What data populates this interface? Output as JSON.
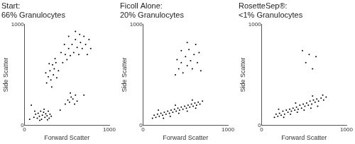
{
  "chart_data": [
    {
      "type": "scatter",
      "title": [
        "Start:",
        "66% Granulocytes"
      ],
      "x_label": "Forward Scatter",
      "y_label": "Side Scatter",
      "xlim": [
        0,
        1000
      ],
      "ylim": [
        0,
        1000
      ],
      "xticks": [
        0,
        1000
      ],
      "yticks": [
        0,
        1000
      ],
      "grid": false,
      "color": "#000000",
      "x": [
        110,
        130,
        150,
        160,
        175,
        190,
        200,
        210,
        225,
        240,
        250,
        265,
        280,
        290,
        300,
        315,
        120,
        180,
        230,
        270,
        480,
        510,
        530,
        550,
        570,
        600,
        620,
        540,
        590,
        260,
        280,
        300,
        310,
        330,
        340,
        350,
        370,
        380,
        400,
        290,
        320,
        360,
        250,
        450,
        480,
        500,
        520,
        540,
        560,
        580,
        600,
        620,
        640,
        660,
        680,
        700,
        720,
        740,
        760,
        520,
        600,
        470,
        780,
        650,
        430,
        60,
        80,
        420,
        700
      ],
      "values": [
        80,
        110,
        70,
        120,
        90,
        140,
        60,
        100,
        130,
        80,
        115,
        95,
        140,
        70,
        110,
        90,
        140,
        50,
        160,
        55,
        210,
        250,
        230,
        280,
        260,
        300,
        240,
        320,
        210,
        420,
        480,
        540,
        450,
        600,
        500,
        560,
        620,
        470,
        540,
        610,
        380,
        660,
        520,
        620,
        700,
        650,
        760,
        690,
        800,
        720,
        850,
        770,
        700,
        820,
        760,
        880,
        800,
        700,
        850,
        880,
        930,
        800,
        760,
        900,
        720,
        60,
        200,
        150,
        300
      ]
    },
    {
      "type": "scatter",
      "title": [
        "Ficoll Alone:",
        "20% Granulocytes"
      ],
      "x_label": "Forward Scatter",
      "y_label": "Side Scatter",
      "xlim": [
        0,
        1000
      ],
      "ylim": [
        0,
        1000
      ],
      "xticks": [
        0,
        1000
      ],
      "yticks": [
        0,
        1000
      ],
      "grid": false,
      "color": "#000000",
      "x": [
        110,
        130,
        150,
        170,
        190,
        210,
        230,
        250,
        270,
        290,
        310,
        330,
        350,
        370,
        390,
        410,
        430,
        450,
        470,
        490,
        510,
        530,
        550,
        570,
        590,
        610,
        630,
        650,
        670,
        700,
        240,
        320,
        420,
        520,
        620,
        180,
        380,
        580,
        380,
        420,
        450,
        470,
        500,
        520,
        540,
        560,
        580,
        600,
        620,
        640,
        660,
        450,
        520,
        400,
        680
      ],
      "values": [
        70,
        100,
        80,
        110,
        90,
        120,
        100,
        130,
        110,
        140,
        120,
        150,
        130,
        160,
        140,
        170,
        150,
        180,
        160,
        190,
        170,
        200,
        180,
        210,
        190,
        220,
        200,
        230,
        210,
        240,
        70,
        90,
        120,
        140,
        170,
        150,
        200,
        250,
        500,
        560,
        620,
        520,
        680,
        590,
        750,
        640,
        560,
        700,
        800,
        620,
        720,
        740,
        820,
        650,
        540
      ]
    },
    {
      "type": "scatter",
      "title": [
        "RosetteSep®:",
        "<1% Granulocytes"
      ],
      "x_label": "Forward Scatter",
      "y_label": "Side Scatter",
      "xlim": [
        0,
        1000
      ],
      "ylim": [
        0,
        1000
      ],
      "xticks": [
        0,
        1000
      ],
      "yticks": [
        0,
        1000
      ],
      "grid": false,
      "color": "#000000",
      "x": [
        150,
        170,
        190,
        210,
        230,
        250,
        270,
        290,
        310,
        330,
        350,
        370,
        390,
        410,
        430,
        450,
        470,
        490,
        510,
        530,
        550,
        570,
        590,
        610,
        630,
        650,
        670,
        700,
        730,
        760,
        260,
        340,
        420,
        500,
        580,
        660,
        200,
        400,
        600,
        720,
        520,
        560,
        600,
        480,
        640
      ],
      "values": [
        80,
        110,
        90,
        120,
        100,
        140,
        110,
        150,
        130,
        160,
        140,
        170,
        150,
        180,
        160,
        200,
        170,
        210,
        190,
        220,
        200,
        240,
        210,
        250,
        230,
        260,
        240,
        270,
        250,
        280,
        80,
        110,
        130,
        150,
        170,
        190,
        160,
        220,
        290,
        300,
        620,
        700,
        560,
        740,
        680
      ]
    }
  ]
}
